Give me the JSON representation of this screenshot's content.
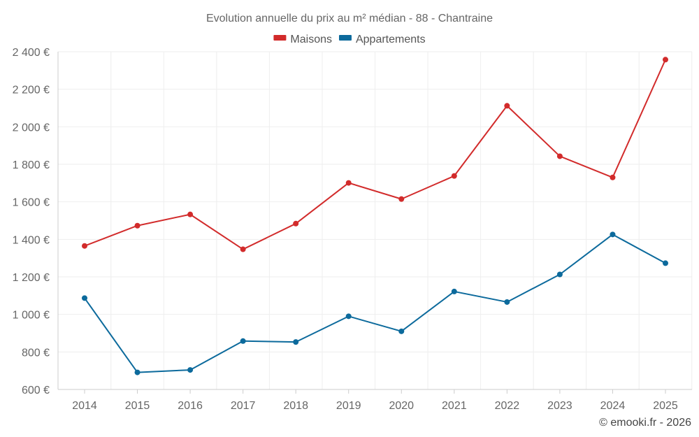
{
  "chart_data": {
    "type": "line",
    "title": "Evolution annuelle du prix au m² médian - 88 - Chantraine",
    "categories": [
      "2014",
      "2015",
      "2016",
      "2017",
      "2018",
      "2019",
      "2020",
      "2021",
      "2022",
      "2023",
      "2024",
      "2025"
    ],
    "series": [
      {
        "name": "Maisons",
        "color": "#d22b2b",
        "values": [
          1365,
          1473,
          1533,
          1347,
          1484,
          1701,
          1615,
          1738,
          2112,
          1843,
          1730,
          2358
        ]
      },
      {
        "name": "Appartements",
        "color": "#0c6a9c",
        "values": [
          1087,
          691,
          704,
          858,
          853,
          990,
          910,
          1122,
          1066,
          1213,
          1426,
          1273
        ]
      }
    ],
    "ylim": [
      600,
      2400
    ],
    "yticks": [
      600,
      800,
      1000,
      1200,
      1400,
      1600,
      1800,
      2000,
      2200,
      2400
    ],
    "ytick_labels": [
      "600 €",
      "800 €",
      "1 000 €",
      "1 200 €",
      "1 400 €",
      "1 600 €",
      "1 800 €",
      "2 000 €",
      "2 200 €",
      "2 400 €"
    ],
    "xlabel": "",
    "ylabel": "",
    "legend_position": "top-center",
    "grid": true
  },
  "credit": "© emooki.fr - 2026"
}
